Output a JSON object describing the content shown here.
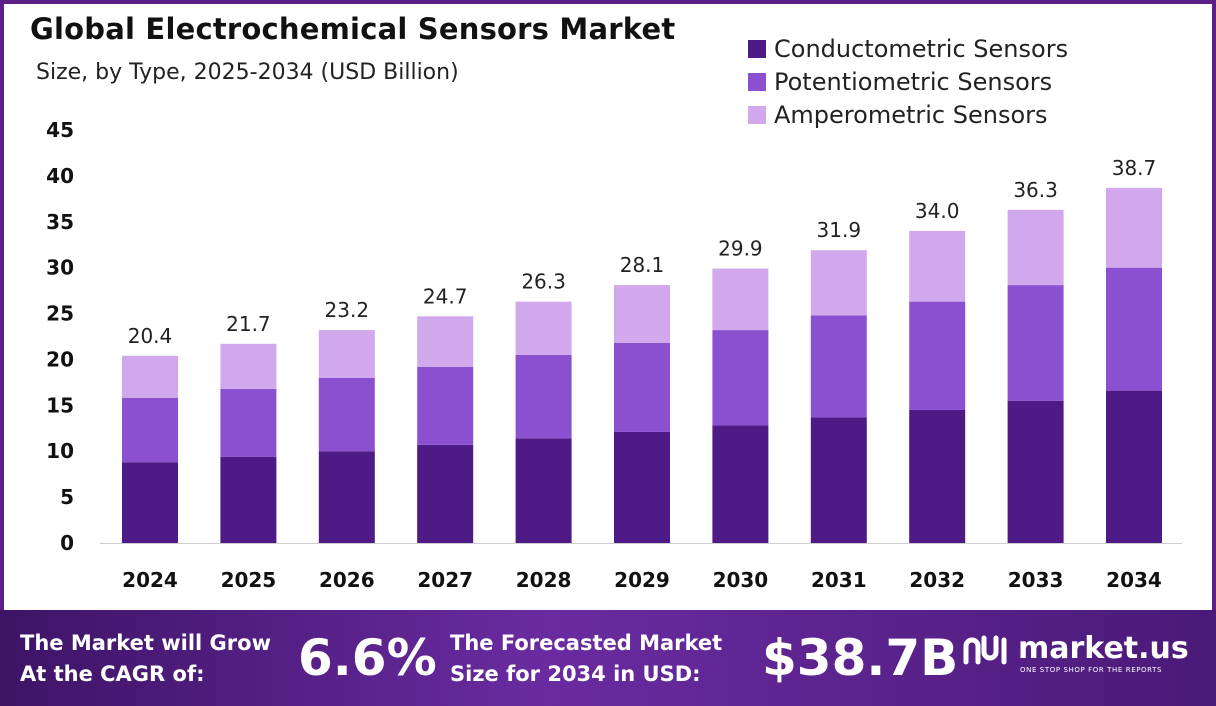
{
  "chart_data": {
    "type": "bar",
    "stacked": true,
    "title": "Global Electrochemical Sensors Market",
    "subtitle": "Size, by Type, 2025-2034 (USD Billion)",
    "categories": [
      "2024",
      "2025",
      "2026",
      "2027",
      "2028",
      "2029",
      "2030",
      "2031",
      "2032",
      "2033",
      "2034"
    ],
    "series": [
      {
        "name": "Conductometric Sensors",
        "color": "#4e1a85",
        "values": [
          8.8,
          9.4,
          10.0,
          10.7,
          11.4,
          12.1,
          12.8,
          13.7,
          14.5,
          15.5,
          16.6
        ]
      },
      {
        "name": "Potentiometric Sensors",
        "color": "#8b50d0",
        "values": [
          7.0,
          7.4,
          8.0,
          8.5,
          9.1,
          9.7,
          10.4,
          11.1,
          11.8,
          12.6,
          13.4
        ]
      },
      {
        "name": "Amperometric Sensors",
        "color": "#d1a8ec",
        "values": [
          4.6,
          4.9,
          5.2,
          5.5,
          5.8,
          6.3,
          6.7,
          7.1,
          7.7,
          8.2,
          8.7
        ]
      }
    ],
    "totals": [
      "20.4",
      "21.7",
      "23.2",
      "24.7",
      "26.3",
      "28.1",
      "29.9",
      "31.9",
      "34.0",
      "36.3",
      "38.7"
    ],
    "ylim": [
      0,
      45
    ],
    "yticks": [
      "0",
      "5",
      "10",
      "15",
      "20",
      "25",
      "30",
      "35",
      "40",
      "45"
    ],
    "xlabel": "",
    "ylabel": "",
    "grid": false,
    "legend_position": "top-right"
  },
  "footer": {
    "cagr_label_line1": "The Market will Grow",
    "cagr_label_line2": "At the CAGR of:",
    "cagr_value": "6.6%",
    "forecast_label_line1": "The Forecasted Market",
    "forecast_label_line2": "Size for 2034 in USD:",
    "forecast_value": "$38.7B",
    "brand_name": "market.us",
    "brand_tagline": "ONE STOP SHOP FOR THE REPORTS"
  },
  "colors": {
    "frame": "#5b1f86",
    "footer_start": "#3d1466",
    "footer_end": "#4a1a78"
  },
  "icons": {
    "logo": "market-us-logo-icon"
  }
}
